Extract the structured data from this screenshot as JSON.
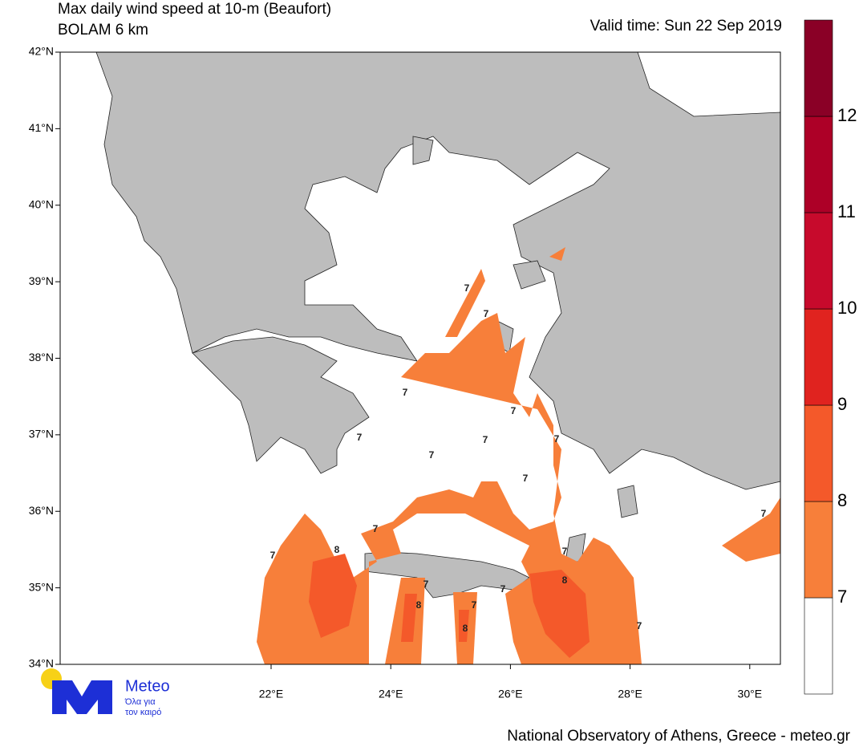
{
  "header": {
    "title": [
      "Max daily wind speed at 10-m (Beaufort)",
      "BOLAM 6 km"
    ],
    "valid_time": "Valid time: Sun 22 Sep 2019"
  },
  "axes": {
    "lat_labels": [
      "42°N",
      "41°N",
      "40°N",
      "39°N",
      "38°N",
      "37°N",
      "36°N",
      "35°N",
      "34°N"
    ],
    "lon_labels": [
      "22°E",
      "24°E",
      "26°E",
      "28°E",
      "30°E"
    ]
  },
  "colorbar": {
    "labels": [
      "7",
      "8",
      "9",
      "10",
      "11",
      "12"
    ],
    "colors": [
      "#ffffff",
      "#f77f3a",
      "#f4592a",
      "#e0231f",
      "#c70a2c",
      "#ad0027",
      "#8a0026"
    ]
  },
  "contour_labels": [
    "7",
    "7",
    "7",
    "7",
    "7",
    "7",
    "7",
    "7",
    "7",
    "7",
    "7",
    "8",
    "7",
    "7",
    "7",
    "8",
    "7",
    "8",
    "7",
    "8",
    "7",
    "7"
  ],
  "logo": {
    "name": "Meteo",
    "tagline": [
      "Όλα για",
      "τον καιρό"
    ]
  },
  "footer": "National Observatory of Athens, Greece - meteo.gr"
}
